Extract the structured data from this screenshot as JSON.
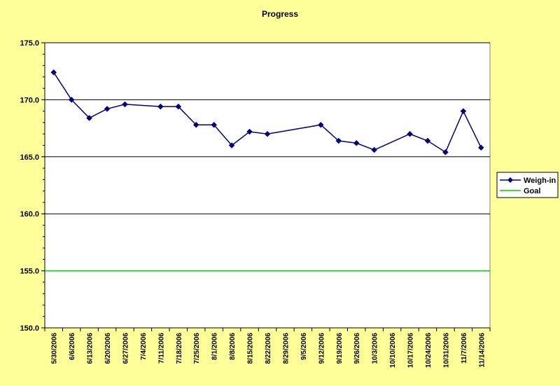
{
  "chart_data": {
    "type": "line",
    "title": "Progress",
    "xlabel": "",
    "ylabel": "",
    "categories": [
      "5/30/2006",
      "6/6/2006",
      "6/13/2006",
      "6/20/2006",
      "6/27/2006",
      "7/4/2006",
      "7/11/2006",
      "7/18/2006",
      "7/25/2006",
      "8/1/2006",
      "8/8/2006",
      "8/15/2006",
      "8/22/2006",
      "8/29/2006",
      "9/5/2006",
      "9/12/2006",
      "9/19/2006",
      "9/26/2006",
      "10/3/2006",
      "10/10/2006",
      "10/17/2006",
      "10/24/2006",
      "10/31/2006",
      "11/7/2006",
      "11/14/2006"
    ],
    "ylim": [
      150.0,
      175.0
    ],
    "yticks": [
      "150.0",
      "155.0",
      "160.0",
      "165.0",
      "170.0",
      "175.0"
    ],
    "grid": "horizontal major gridlines",
    "legend_position": "right",
    "series": [
      {
        "name": "Weigh-in",
        "color": "#000080",
        "marker": "diamond",
        "values": [
          172.4,
          170.0,
          168.4,
          169.2,
          169.6,
          null,
          169.4,
          169.4,
          167.8,
          167.8,
          166.0,
          167.2,
          167.0,
          null,
          null,
          167.8,
          166.4,
          166.2,
          165.6,
          null,
          167.0,
          166.4,
          165.4,
          169.0,
          165.8
        ]
      },
      {
        "name": "Goal",
        "color": "#00CC00",
        "marker": "none",
        "values": [
          155,
          155,
          155,
          155,
          155,
          155,
          155,
          155,
          155,
          155,
          155,
          155,
          155,
          155,
          155,
          155,
          155,
          155,
          155,
          155,
          155,
          155,
          155,
          155,
          155
        ]
      }
    ]
  },
  "colors": {
    "page_background": "#FFFF99",
    "plot_background": "#FFFFFF",
    "gridline": "#000000"
  }
}
